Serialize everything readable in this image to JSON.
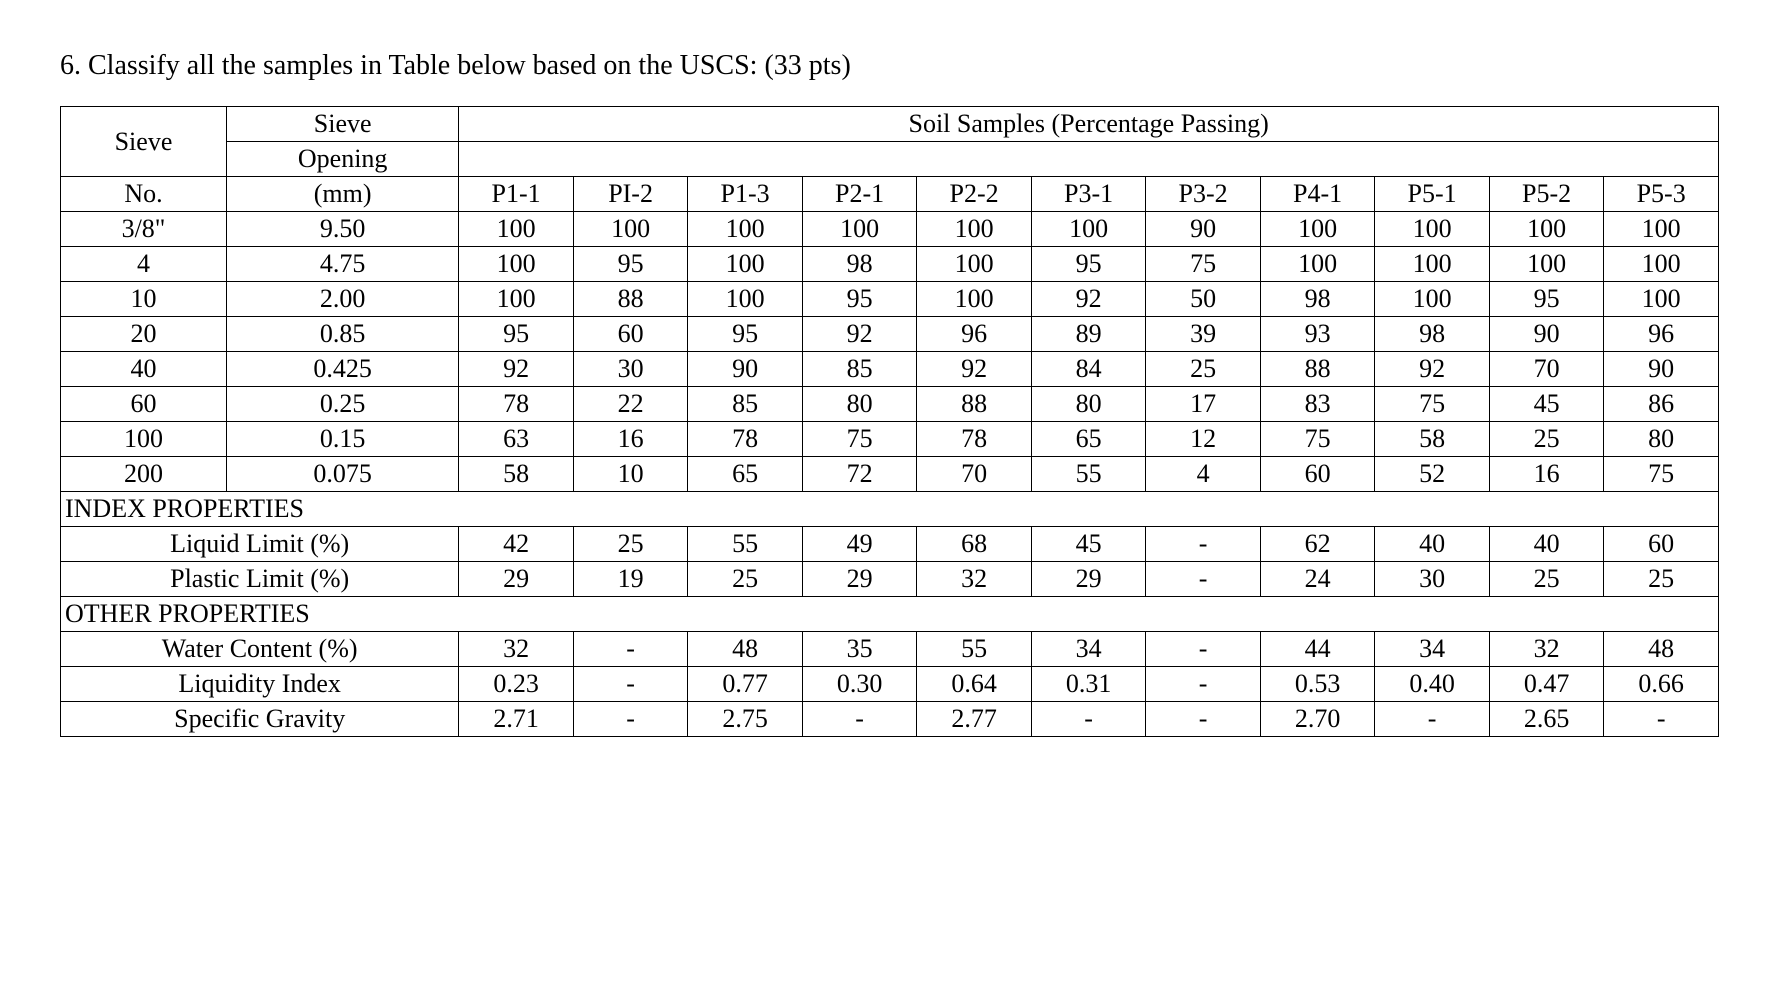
{
  "question": "6. Classify all the samples in Table below based on the USCS: (33 pts)",
  "header": {
    "sieve_no": "Sieve",
    "sieve_no_sub": "No.",
    "sieve_opening": "Sieve",
    "sieve_opening_mid": "Opening",
    "sieve_opening_sub": "(mm)",
    "samples_title": "Soil Samples (Percentage Passing)",
    "sample_ids": [
      "P1-1",
      "PI-2",
      "P1-3",
      "P2-1",
      "P2-2",
      "P3-1",
      "P3-2",
      "P4-1",
      "P5-1",
      "P5-2",
      "P5-3"
    ]
  },
  "sieve_rows": [
    {
      "no": "3/8\"",
      "mm": "9.50",
      "vals": [
        "100",
        "100",
        "100",
        "100",
        "100",
        "100",
        "90",
        "100",
        "100",
        "100",
        "100"
      ]
    },
    {
      "no": "4",
      "mm": "4.75",
      "vals": [
        "100",
        "95",
        "100",
        "98",
        "100",
        "95",
        "75",
        "100",
        "100",
        "100",
        "100"
      ]
    },
    {
      "no": "10",
      "mm": "2.00",
      "vals": [
        "100",
        "88",
        "100",
        "95",
        "100",
        "92",
        "50",
        "98",
        "100",
        "95",
        "100"
      ]
    },
    {
      "no": "20",
      "mm": "0.85",
      "vals": [
        "95",
        "60",
        "95",
        "92",
        "96",
        "89",
        "39",
        "93",
        "98",
        "90",
        "96"
      ]
    },
    {
      "no": "40",
      "mm": "0.425",
      "vals": [
        "92",
        "30",
        "90",
        "85",
        "92",
        "84",
        "25",
        "88",
        "92",
        "70",
        "90"
      ]
    },
    {
      "no": "60",
      "mm": "0.25",
      "vals": [
        "78",
        "22",
        "85",
        "80",
        "88",
        "80",
        "17",
        "83",
        "75",
        "45",
        "86"
      ]
    },
    {
      "no": "100",
      "mm": "0.15",
      "vals": [
        "63",
        "16",
        "78",
        "75",
        "78",
        "65",
        "12",
        "75",
        "58",
        "25",
        "80"
      ]
    },
    {
      "no": "200",
      "mm": "0.075",
      "vals": [
        "58",
        "10",
        "65",
        "72",
        "70",
        "55",
        "4",
        "60",
        "52",
        "16",
        "75"
      ]
    }
  ],
  "section_headers": {
    "index": "INDEX PROPERTIES",
    "other": "OTHER PROPERTIES"
  },
  "index_rows": [
    {
      "label": "Liquid Limit (%)",
      "vals": [
        "42",
        "25",
        "55",
        "49",
        "68",
        "45",
        "-",
        "62",
        "40",
        "40",
        "60"
      ]
    },
    {
      "label": "Plastic Limit (%)",
      "vals": [
        "29",
        "19",
        "25",
        "29",
        "32",
        "29",
        "-",
        "24",
        "30",
        "25",
        "25"
      ]
    }
  ],
  "other_rows": [
    {
      "label": "Water Content (%)",
      "vals": [
        "32",
        "-",
        "48",
        "35",
        "55",
        "34",
        "-",
        "44",
        "34",
        "32",
        "48"
      ]
    },
    {
      "label": "Liquidity Index",
      "vals": [
        "0.23",
        "-",
        "0.77",
        "0.30",
        "0.64",
        "0.31",
        "-",
        "0.53",
        "0.40",
        "0.47",
        "0.66"
      ]
    },
    {
      "label": "Specific Gravity",
      "vals": [
        "2.71",
        "-",
        "2.75",
        "-",
        "2.77",
        "-",
        "-",
        "2.70",
        "-",
        "2.65",
        "-"
      ]
    }
  ],
  "styling": {
    "background_color": "#ffffff",
    "text_color": "#000000",
    "border_color": "#000000",
    "font_family": "Times New Roman",
    "question_fontsize": 28,
    "table_fontsize": 26,
    "col_widths": {
      "sieve_no": "10%",
      "sieve_opening": "14%",
      "sample": "6.9%"
    }
  }
}
